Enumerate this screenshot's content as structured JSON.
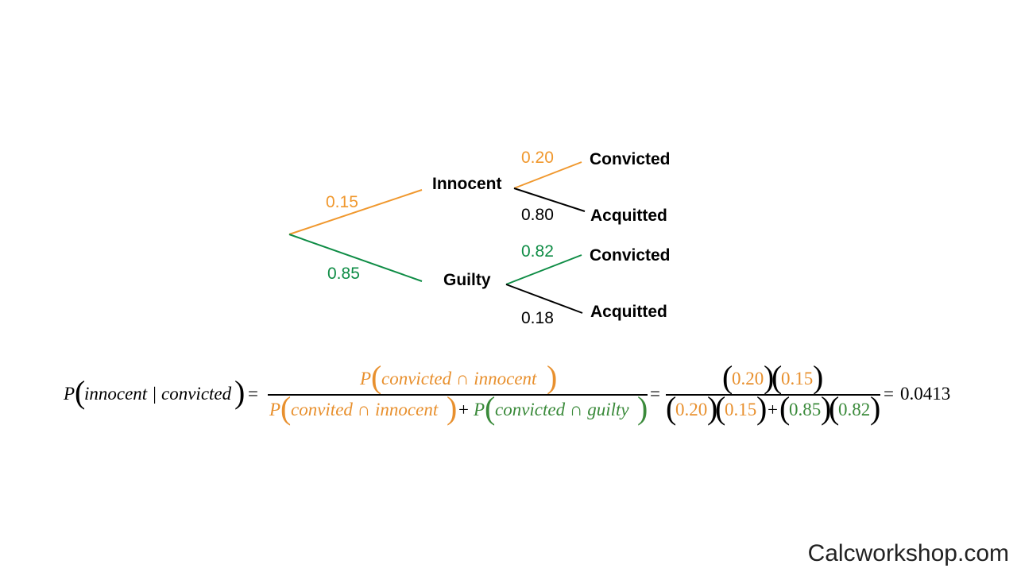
{
  "colors": {
    "innocent_branch": "#F0982E",
    "guilty_branch": "#0E8C45",
    "neutral_branch": "#000000",
    "formula_orange": "#E8902E",
    "formula_green": "#3A8A3A"
  },
  "tree": {
    "level1": {
      "innocent": {
        "label": "Innocent",
        "prob": "0.15"
      },
      "guilty": {
        "label": "Guilty",
        "prob": "0.85"
      }
    },
    "innocent_children": {
      "convicted": {
        "label": "Convicted",
        "prob": "0.20"
      },
      "acquitted": {
        "label": "Acquitted",
        "prob": "0.80"
      }
    },
    "guilty_children": {
      "convicted": {
        "label": "Convicted",
        "prob": "0.82"
      },
      "acquitted": {
        "label": "Acquitted",
        "prob": "0.18"
      }
    }
  },
  "formula": {
    "lhs_P": "P",
    "lhs_arg": "innocent | convicted",
    "eq1": "=",
    "num_P": "P",
    "num_arg": "convicted ∩ innocent",
    "den1_P": "P",
    "den1_arg": "convited ∩ innocent",
    "den_plus": "+",
    "den2_P": "P",
    "den2_arg": "convicted ∩ guilty",
    "eq2": "=",
    "num_v1": "0.20",
    "num_v2": "0.15",
    "den_v1": "0.20",
    "den_v2": "0.15",
    "den_plus2": "+",
    "den_v3": "0.85",
    "den_v4": "0.82",
    "eq3": "=",
    "result": "0.0413"
  },
  "watermark": "Calcworkshop.com"
}
